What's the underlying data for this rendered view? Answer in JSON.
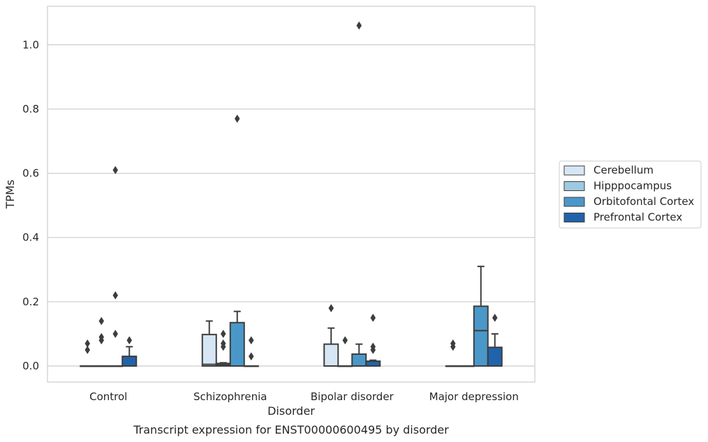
{
  "caption": "Transcript expression for ENST00000600495 by disorder",
  "chart_data": {
    "type": "box",
    "title": "",
    "xlabel": "Disorder",
    "ylabel": "TPMs",
    "ylim": [
      -0.05,
      1.12
    ],
    "yticks": [
      0.0,
      0.2,
      0.4,
      0.6,
      0.8,
      1.0
    ],
    "ytick_labels": [
      "0.0",
      "0.2",
      "0.4",
      "0.6",
      "0.8",
      "1.0"
    ],
    "grid": "horizontal",
    "legend_position": "right",
    "categories": [
      "Control",
      "Schizophrenia",
      "Bipolar disorder",
      "Major depression"
    ],
    "series": [
      {
        "name": "Cerebellum",
        "color": "#d6e6f4",
        "boxes": [
          {
            "q1": 0,
            "median": 0,
            "q3": 0,
            "whisker_low": 0,
            "whisker_high": 0,
            "outliers": [
              0.07,
              0.05
            ]
          },
          {
            "q1": 0,
            "median": 0.005,
            "q3": 0.098,
            "whisker_low": 0,
            "whisker_high": 0.14,
            "outliers": []
          },
          {
            "q1": 0,
            "median": 0,
            "q3": 0.068,
            "whisker_low": 0,
            "whisker_high": 0.118,
            "outliers": [
              0.18
            ]
          },
          {
            "q1": 0,
            "median": 0,
            "q3": 0,
            "whisker_low": 0,
            "whisker_high": 0,
            "outliers": [
              0.07,
              0.06
            ]
          }
        ]
      },
      {
        "name": "Hipppocampus",
        "color": "#9ecae1",
        "boxes": [
          {
            "q1": 0,
            "median": 0,
            "q3": 0,
            "whisker_low": 0,
            "whisker_high": 0,
            "outliers": [
              0.14,
              0.09,
              0.08
            ]
          },
          {
            "q1": 0,
            "median": 0.004,
            "q3": 0.008,
            "whisker_low": 0,
            "whisker_high": 0.01,
            "outliers": [
              0.1,
              0.07,
              0.06
            ]
          },
          {
            "q1": 0,
            "median": 0,
            "q3": 0,
            "whisker_low": 0,
            "whisker_high": 0,
            "outliers": [
              0.08
            ]
          },
          {
            "q1": 0,
            "median": 0,
            "q3": 0,
            "whisker_low": 0,
            "whisker_high": 0,
            "outliers": []
          }
        ]
      },
      {
        "name": "Orbitofontal Cortex",
        "color": "#4a98c9",
        "boxes": [
          {
            "q1": 0,
            "median": 0,
            "q3": 0,
            "whisker_low": 0,
            "whisker_high": 0,
            "outliers": [
              0.61,
              0.22,
              0.1
            ]
          },
          {
            "q1": 0,
            "median": 0,
            "q3": 0.135,
            "whisker_low": 0,
            "whisker_high": 0.17,
            "outliers": [
              0.77
            ]
          },
          {
            "q1": 0,
            "median": 0,
            "q3": 0.037,
            "whisker_low": 0,
            "whisker_high": 0.068,
            "outliers": [
              1.06
            ]
          },
          {
            "q1": 0,
            "median": 0.11,
            "q3": 0.186,
            "whisker_low": 0,
            "whisker_high": 0.31,
            "outliers": []
          }
        ]
      },
      {
        "name": "Prefrontal Cortex",
        "color": "#2163aa",
        "boxes": [
          {
            "q1": 0,
            "median": 0,
            "q3": 0.03,
            "whisker_low": 0,
            "whisker_high": 0.06,
            "outliers": [
              0.08
            ]
          },
          {
            "q1": 0,
            "median": 0,
            "q3": 0,
            "whisker_low": 0,
            "whisker_high": 0,
            "outliers": [
              0.08,
              0.03
            ]
          },
          {
            "q1": 0,
            "median": 0,
            "q3": 0.015,
            "whisker_low": 0,
            "whisker_high": 0.018,
            "outliers": [
              0.15,
              0.06,
              0.05
            ]
          },
          {
            "q1": 0,
            "median": 0,
            "q3": 0.058,
            "whisker_low": 0,
            "whisker_high": 0.1,
            "outliers": [
              0.15
            ]
          }
        ]
      }
    ]
  }
}
